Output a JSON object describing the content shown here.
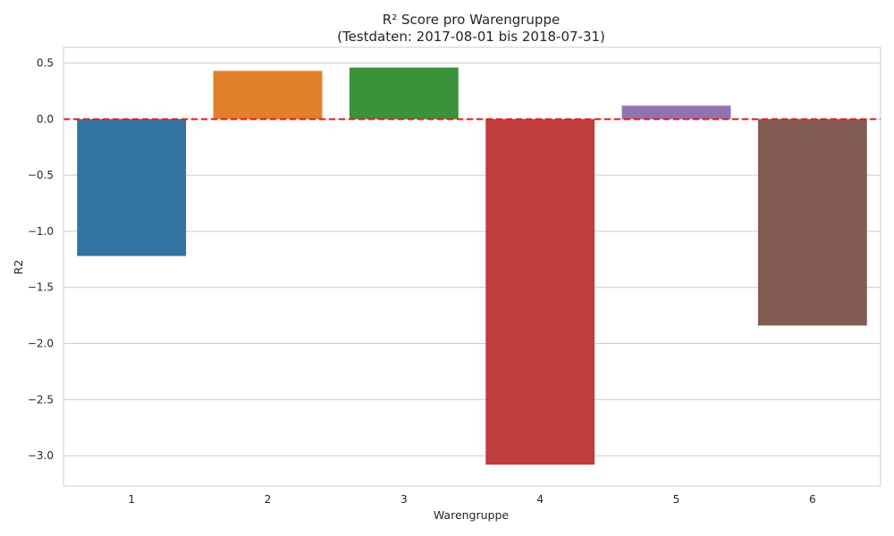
{
  "chart_data": {
    "type": "bar",
    "title_lines": [
      "R² Score pro Warengruppe",
      "(Testdaten: 2017-08-01 bis 2018-07-31)"
    ],
    "xlabel": "Warengruppe",
    "ylabel": "R2",
    "categories": [
      "1",
      "2",
      "3",
      "4",
      "5",
      "6"
    ],
    "values": [
      -1.22,
      0.43,
      0.46,
      -3.08,
      0.12,
      -1.84
    ],
    "colors": [
      "#3274a1",
      "#e1812c",
      "#3a923a",
      "#c03d3e",
      "#9372b2",
      "#845b53"
    ],
    "ylim": [
      -3.27,
      0.64
    ],
    "yticks": [
      0.5,
      0.0,
      -0.5,
      -1.0,
      -1.5,
      -2.0,
      -2.5,
      -3.0
    ],
    "ytick_labels": [
      "0.5",
      "0.0",
      "−0.5",
      "−1.0",
      "−1.5",
      "−2.0",
      "−2.5",
      "−3.0"
    ],
    "grid": true,
    "reference_line": {
      "y": 0,
      "color": "#e41a1c",
      "style": "dashed"
    }
  }
}
